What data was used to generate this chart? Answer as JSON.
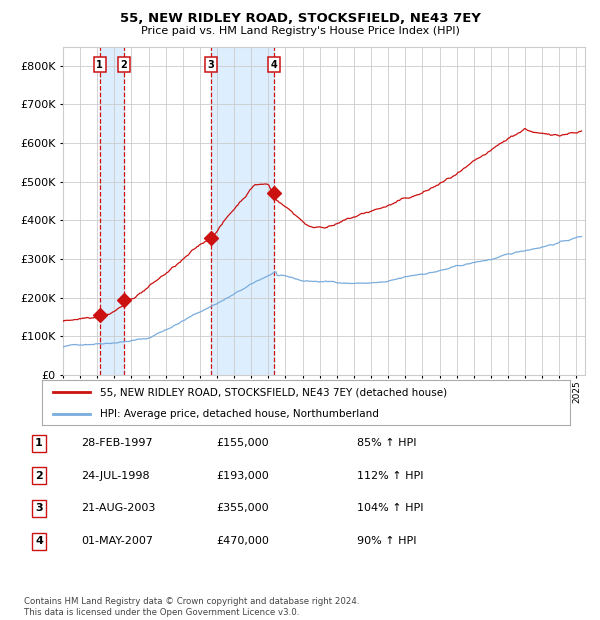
{
  "title": "55, NEW RIDLEY ROAD, STOCKSFIELD, NE43 7EY",
  "subtitle": "Price paid vs. HM Land Registry's House Price Index (HPI)",
  "footer": "Contains HM Land Registry data © Crown copyright and database right 2024.\nThis data is licensed under the Open Government Licence v3.0.",
  "legend_line1": "55, NEW RIDLEY ROAD, STOCKSFIELD, NE43 7EY (detached house)",
  "legend_line2": "HPI: Average price, detached house, Northumberland",
  "sales": [
    {
      "label": "1",
      "date": "28-FEB-1997",
      "price": 155000,
      "price_str": "£155,000",
      "pct": "85% ↑ HPI",
      "x_year": 1997.15
    },
    {
      "label": "2",
      "date": "24-JUL-1998",
      "price": 193000,
      "price_str": "£193,000",
      "pct": "112% ↑ HPI",
      "x_year": 1998.56
    },
    {
      "label": "3",
      "date": "21-AUG-2003",
      "price": 355000,
      "price_str": "£355,000",
      "pct": "104% ↑ HPI",
      "x_year": 2003.64
    },
    {
      "label": "4",
      "date": "01-MAY-2007",
      "price": 470000,
      "price_str": "£470,000",
      "pct": "90% ↑ HPI",
      "x_year": 2007.33
    }
  ],
  "hpi_color": "#7aaddc",
  "price_color": "#cc1111",
  "vline_color": "#cc1111",
  "shade_color": "#ddeeff",
  "grid_color": "#cccccc",
  "bg_color": "#ffffff",
  "ylim": [
    0,
    850000
  ],
  "xlim_start": 1995.0,
  "xlim_end": 2025.5
}
